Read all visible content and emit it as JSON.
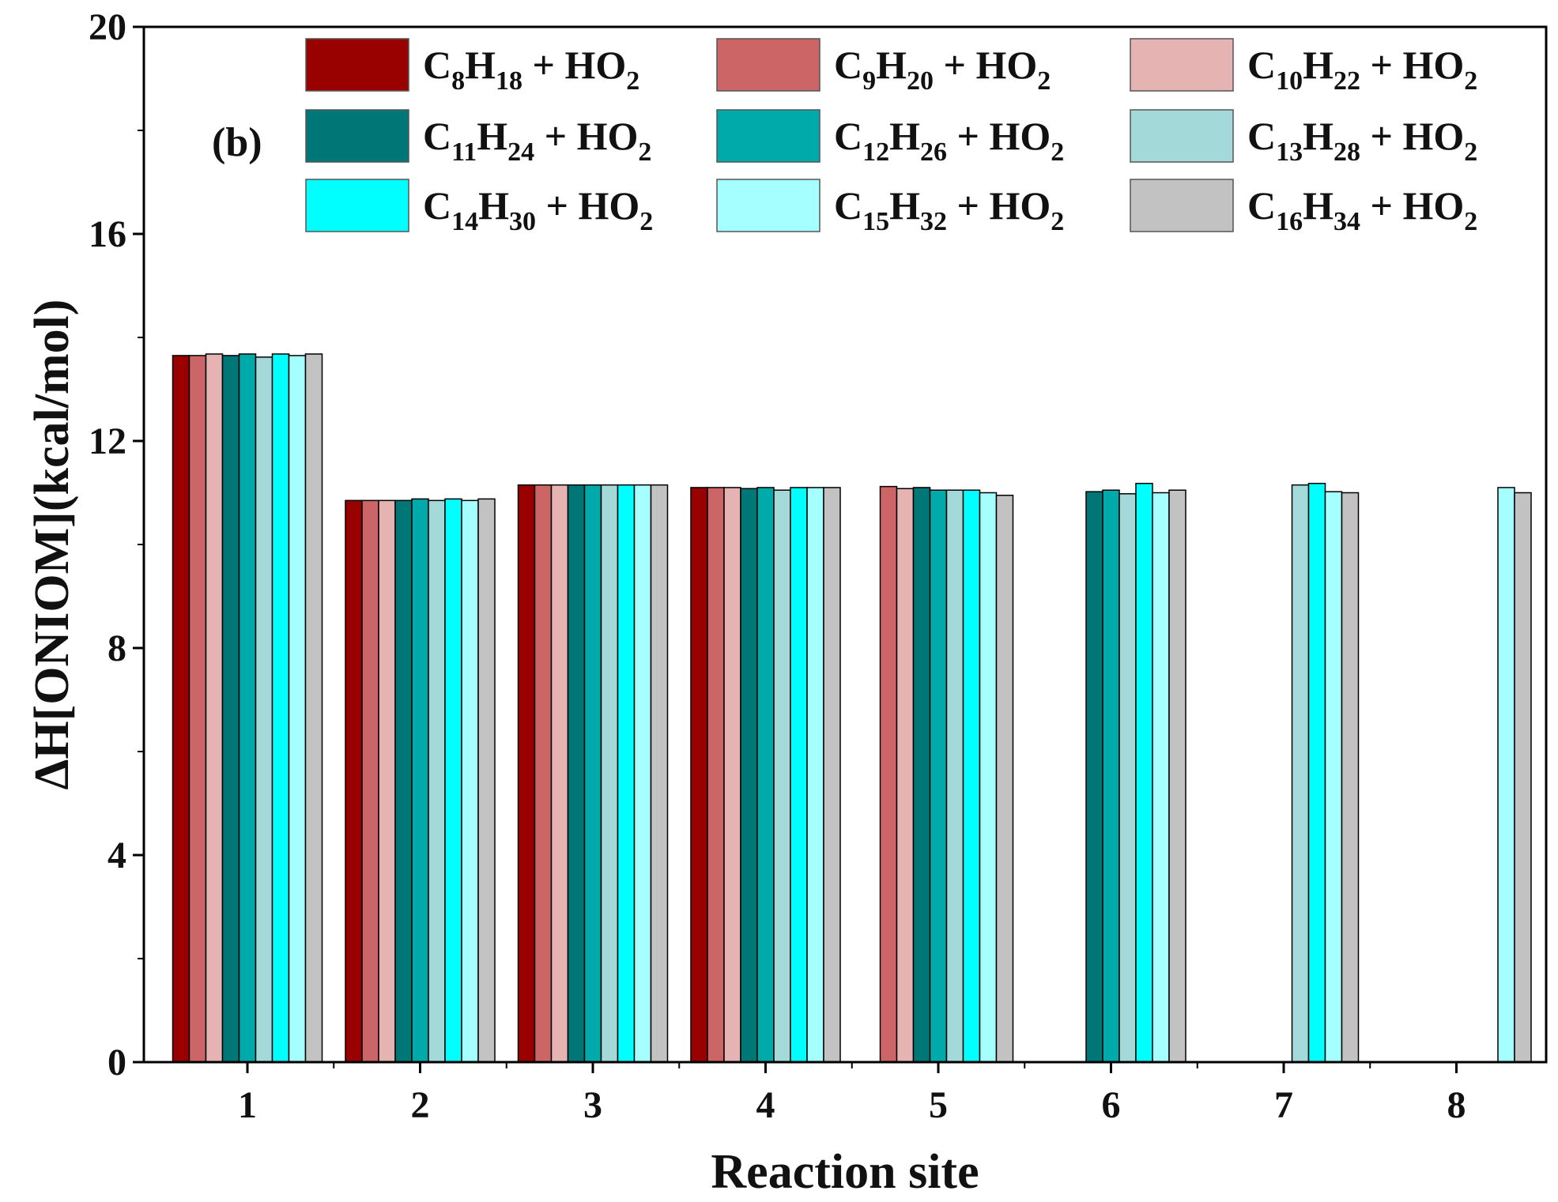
{
  "chart_data": {
    "type": "bar",
    "panel_label": "(b)",
    "xlabel": "Reaction site",
    "ylabel": "ΔH[ONIOM](kcal/mol)",
    "ylim": [
      0,
      20
    ],
    "yticks": [
      0,
      4,
      8,
      12,
      16,
      20
    ],
    "categories": [
      "1",
      "2",
      "3",
      "4",
      "5",
      "6",
      "7",
      "8"
    ],
    "legend_position": "top-right",
    "series": [
      {
        "name": "C8H18 + HO2",
        "color": "#990000",
        "legend": {
          "c": "C",
          "n1": "8",
          "h": "H",
          "n2": "18",
          "rest": " + HO",
          "o": "2"
        },
        "values": [
          13.65,
          10.85,
          11.15,
          11.1,
          null,
          null,
          null,
          null
        ]
      },
      {
        "name": "C9H20 + HO2",
        "color": "#CC6666",
        "legend": {
          "c": "C",
          "n1": "9",
          "h": "H",
          "n2": "20",
          "rest": " + HO",
          "o": "2"
        },
        "values": [
          13.65,
          10.85,
          11.15,
          11.1,
          11.12,
          null,
          null,
          null
        ]
      },
      {
        "name": "C10H22 + HO2",
        "color": "#E6B3B3",
        "legend": {
          "c": "C",
          "n1": "10",
          "h": "H",
          "n2": "22",
          "rest": " + HO",
          "o": "2"
        },
        "values": [
          13.68,
          10.85,
          11.15,
          11.1,
          11.08,
          null,
          null,
          null
        ]
      },
      {
        "name": "C11H24 + HO2",
        "color": "#007777",
        "legend": {
          "c": "C",
          "n1": "11",
          "h": "H",
          "n2": "24",
          "rest": " + HO",
          "o": "2"
        },
        "values": [
          13.65,
          10.85,
          11.15,
          11.08,
          11.1,
          11.02,
          null,
          null
        ]
      },
      {
        "name": "C12H26 + HO2",
        "color": "#00AAAA",
        "legend": {
          "c": "C",
          "n1": "12",
          "h": "H",
          "n2": "26",
          "rest": " + HO",
          "o": "2"
        },
        "values": [
          13.68,
          10.88,
          11.15,
          11.1,
          11.05,
          11.05,
          null,
          null
        ]
      },
      {
        "name": "C13H28 + HO2",
        "color": "#A3D9D9",
        "legend": {
          "c": "C",
          "n1": "13",
          "h": "H",
          "n2": "28",
          "rest": " + HO",
          "o": "2"
        },
        "values": [
          13.62,
          10.85,
          11.15,
          11.05,
          11.05,
          10.98,
          11.15,
          null
        ]
      },
      {
        "name": "C14H30 + HO2",
        "color": "#00FFFF",
        "legend": {
          "c": "C",
          "n1": "14",
          "h": "H",
          "n2": "30",
          "rest": " + HO",
          "o": "2"
        },
        "values": [
          13.68,
          10.88,
          11.15,
          11.1,
          11.05,
          11.18,
          11.18,
          null
        ]
      },
      {
        "name": "C15H32 + HO2",
        "color": "#A6FFFF",
        "legend": {
          "c": "C",
          "n1": "15",
          "h": "H",
          "n2": "32",
          "rest": " + HO",
          "o": "2"
        },
        "values": [
          13.65,
          10.85,
          11.15,
          11.1,
          11.0,
          11.0,
          11.02,
          11.1
        ]
      },
      {
        "name": "C16H34 + HO2",
        "color": "#C2C2C2",
        "legend": {
          "c": "C",
          "n1": "16",
          "h": "H",
          "n2": "34",
          "rest": " + HO",
          "o": "2"
        },
        "values": [
          13.68,
          10.88,
          11.15,
          11.1,
          10.95,
          11.05,
          11.0,
          11.0
        ]
      }
    ]
  }
}
